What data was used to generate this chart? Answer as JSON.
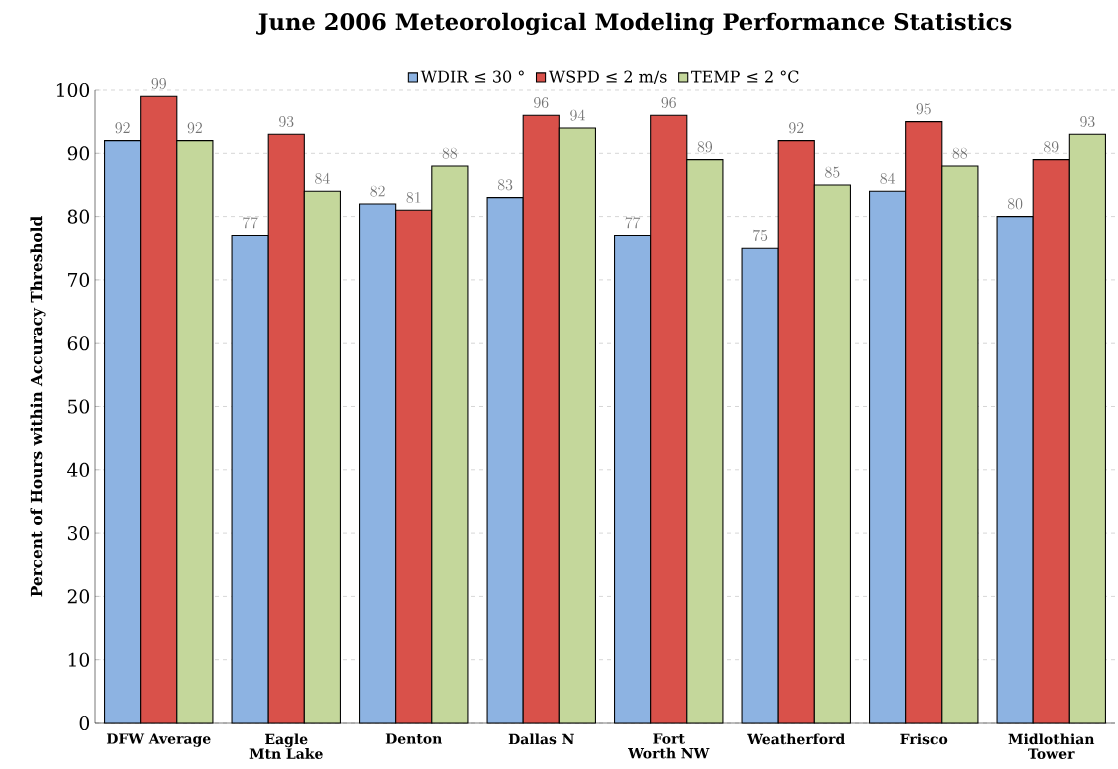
{
  "chart_data": {
    "type": "bar",
    "title": "June 2006 Meteorological Modeling Performance Statistics",
    "ylabel": "Percent of Hours within Accuracy Threshold",
    "categories": [
      "DFW Average",
      "Eagle Mtn Lake",
      "Denton",
      "Dallas N",
      "Fort Worth NW",
      "Weatherford",
      "Frisco",
      "Midlothian Tower"
    ],
    "series": [
      {
        "name": "WDIR ≤ 30 °",
        "color": "#8db3e2",
        "values": [
          92,
          77,
          82,
          83,
          77,
          75,
          84,
          80
        ]
      },
      {
        "name": "WSPD ≤ 2 m/s",
        "color": "#d9514a",
        "values": [
          99,
          93,
          81,
          96,
          96,
          92,
          95,
          89
        ]
      },
      {
        "name": "TEMP ≤ 2 °C",
        "color": "#c4d79b",
        "values": [
          92,
          84,
          88,
          94,
          89,
          85,
          88,
          93
        ]
      }
    ],
    "ylim": [
      0,
      100
    ],
    "yticks": [
      0,
      10,
      20,
      30,
      40,
      50,
      60,
      70,
      80,
      90,
      100
    ],
    "grid": "y",
    "legend": "top",
    "data_labels": true
  }
}
